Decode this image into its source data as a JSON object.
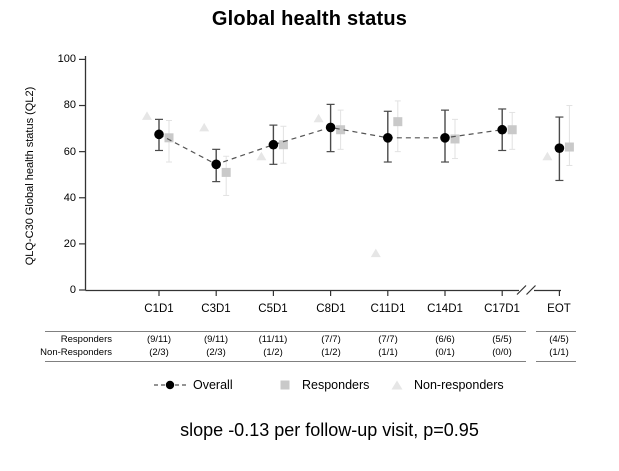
{
  "title": "Global health status",
  "caption": "slope -0.13 per follow-up visit, p=0.95",
  "chart_data": {
    "type": "line",
    "title": "Global health status",
    "ylabel": "QLQ-C30 Global health status (QL2)",
    "xlabel": "",
    "ylim": [
      0,
      100
    ],
    "yticks_top_to_bottom": [
      100,
      80,
      60,
      40,
      20,
      0
    ],
    "categories": [
      "C1D1",
      "C3D1",
      "C5D1",
      "C8D1",
      "C11D1",
      "C14D1",
      "C17D1",
      "EOT"
    ],
    "x_axis_break_before_last": true,
    "grid": false,
    "legend_position": "bottom",
    "series": [
      {
        "name": "Overall",
        "marker": "circle",
        "connect": "dashed",
        "connect_last_point": false,
        "color": "#000000",
        "error_bar_color": "#4a4a4a",
        "values": [
          67.5,
          54.5,
          63,
          70.5,
          66,
          66,
          69.5,
          61.5
        ],
        "ci_low": [
          60.5,
          47,
          54.5,
          60,
          55.5,
          55.5,
          60.5,
          47.5
        ],
        "ci_high": [
          74,
          61,
          71.5,
          80.5,
          77.5,
          78,
          78.5,
          75
        ]
      },
      {
        "name": "Responders",
        "marker": "square",
        "color": "#c9c9c9",
        "error_bar_color": "#e2e2e2",
        "values": [
          66,
          51,
          63,
          69.5,
          73,
          65.5,
          69.5,
          62
        ],
        "ci_low": [
          55.5,
          41,
          55,
          61,
          60,
          57,
          61,
          54
        ],
        "ci_high": [
          73.5,
          58,
          71,
          78,
          82,
          74,
          77,
          80
        ]
      },
      {
        "name": "Non-responders",
        "marker": "triangle",
        "color": "#e6e6e6",
        "values": [
          75.5,
          70.5,
          58,
          74.5,
          16,
          null,
          null,
          58
        ]
      }
    ]
  },
  "annotation_table": {
    "rows": [
      {
        "label": "Responders",
        "values": [
          "(9/11)",
          "(9/11)",
          "(11/11)",
          "(7/7)",
          "(7/7)",
          "(6/6)",
          "(5/5)",
          "(4/5)"
        ]
      },
      {
        "label": "Non-Responders",
        "values": [
          "(2/3)",
          "(2/3)",
          "(1/2)",
          "(1/2)",
          "(1/1)",
          "(0/1)",
          "(0/0)",
          "(1/1)"
        ]
      }
    ]
  },
  "legend": {
    "items": [
      {
        "label": "Overall"
      },
      {
        "label": "Responders"
      },
      {
        "label": "Non-responders"
      }
    ]
  }
}
